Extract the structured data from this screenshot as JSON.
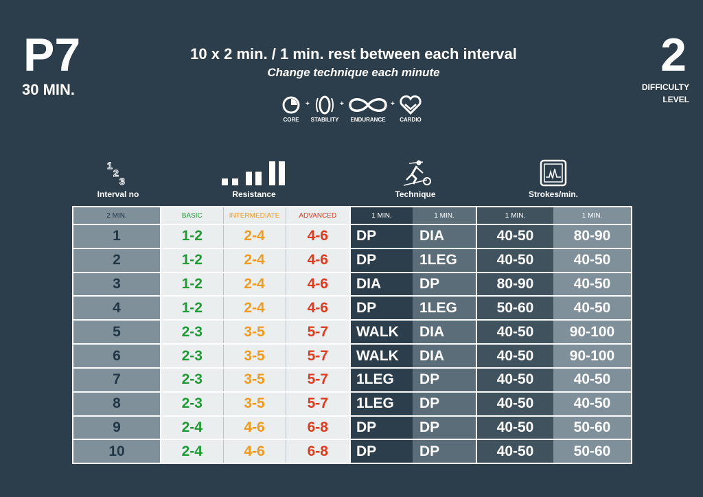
{
  "header": {
    "program": "P7",
    "duration": "30 MIN.",
    "title": "10 x 2 min. / 1 min. rest between each interval",
    "subtitle": "Change technique each minute",
    "difficulty_value": "2",
    "difficulty_label_1": "DIFFICULTY",
    "difficulty_label_2": "LEVEL"
  },
  "benefits": [
    {
      "label": "CORE",
      "icon": "core-icon"
    },
    {
      "label": "STABILITY",
      "icon": "stability-icon"
    },
    {
      "label": "ENDURANCE",
      "icon": "endurance-icon"
    },
    {
      "label": "CARDIO",
      "icon": "cardio-icon"
    }
  ],
  "plus_sign": "+",
  "columns": {
    "interval": "Interval no",
    "resistance": "Resistance",
    "technique": "Technique",
    "strokes": "Strokes/min."
  },
  "table": {
    "headers": [
      "2 MIN.",
      "BASIC",
      "INTERMEDIATE",
      "ADVANCED",
      "1 MIN.",
      "1 MIN.",
      "1 MIN.",
      "1 MIN."
    ],
    "rows": [
      [
        "1",
        "1-2",
        "2-4",
        "4-6",
        "DP",
        "DIA",
        "40-50",
        "80-90"
      ],
      [
        "2",
        "1-2",
        "2-4",
        "4-6",
        "DP",
        "1LEG",
        "40-50",
        "40-50"
      ],
      [
        "3",
        "1-2",
        "2-4",
        "4-6",
        "DIA",
        "DP",
        "80-90",
        "40-50"
      ],
      [
        "4",
        "1-2",
        "2-4",
        "4-6",
        "DP",
        "1LEG",
        "50-60",
        "40-50"
      ],
      [
        "5",
        "2-3",
        "3-5",
        "5-7",
        "WALK",
        "DIA",
        "40-50",
        "90-100"
      ],
      [
        "6",
        "2-3",
        "3-5",
        "5-7",
        "WALK",
        "DIA",
        "40-50",
        "90-100"
      ],
      [
        "7",
        "2-3",
        "3-5",
        "5-7",
        "1LEG",
        "DP",
        "40-50",
        "40-50"
      ],
      [
        "8",
        "2-3",
        "3-5",
        "5-7",
        "1LEG",
        "DP",
        "40-50",
        "40-50"
      ],
      [
        "9",
        "2-4",
        "4-6",
        "6-8",
        "DP",
        "DP",
        "40-50",
        "50-60"
      ],
      [
        "10",
        "2-4",
        "4-6",
        "6-8",
        "DP",
        "DP",
        "40-50",
        "50-60"
      ]
    ]
  },
  "colors": {
    "background": "#2c3e4c",
    "basic": "#1f9a34",
    "intermediate": "#f39a1c",
    "advanced": "#e03b1e"
  }
}
